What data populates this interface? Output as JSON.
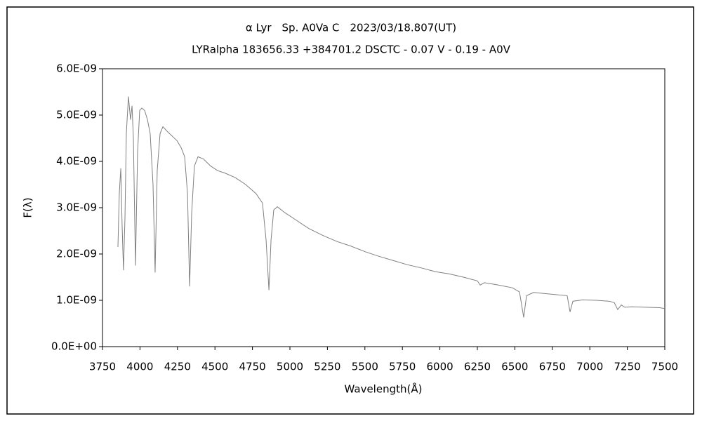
{
  "chart_data": {
    "type": "line",
    "title": "α Lyr　Sp. A0Va C　2023/03/18.807(UT)",
    "subtitle": "LYRalpha 183656.33 +384701.2 DSCTC - 0.07 V - 0.19 - A0V",
    "x_label": "Wavelength(Å)",
    "y_label": "F(λ)",
    "xlim": [
      3750,
      7500
    ],
    "xticks": [
      3750,
      4000,
      4250,
      4500,
      4750,
      5000,
      5250,
      5500,
      5750,
      6000,
      6250,
      6500,
      6750,
      7000,
      7250,
      7500
    ],
    "ylim": [
      0,
      6e-09
    ],
    "yticks": [
      {
        "value": 0,
        "label": "0.0E+00"
      },
      {
        "value": 1e-09,
        "label": "1.0E-09"
      },
      {
        "value": 2e-09,
        "label": "2.0E-09"
      },
      {
        "value": 3e-09,
        "label": "3.0E-09"
      },
      {
        "value": 4e-09,
        "label": "4.0E-09"
      },
      {
        "value": 5e-09,
        "label": "5.0E-09"
      },
      {
        "value": 6e-09,
        "label": "6.0E-09"
      }
    ],
    "grid": false,
    "color": "#808080",
    "x": [
      3853,
      3862,
      3872,
      3881,
      3890,
      3900,
      3909,
      3923,
      3937,
      3947,
      3956,
      3970,
      3984,
      3998,
      4012,
      4031,
      4050,
      4068,
      4087,
      4101,
      4115,
      4134,
      4153,
      4181,
      4213,
      4246,
      4274,
      4298,
      4317,
      4331,
      4345,
      4363,
      4387,
      4424,
      4471,
      4518,
      4565,
      4635,
      4705,
      4775,
      4817,
      4841,
      4860,
      4874,
      4892,
      4916,
      4963,
      5033,
      5126,
      5220,
      5314,
      5407,
      5501,
      5594,
      5688,
      5782,
      5876,
      5969,
      6063,
      6157,
      6250,
      6269,
      6297,
      6391,
      6484,
      6531,
      6559,
      6578,
      6625,
      6718,
      6849,
      6868,
      6887,
      6952,
      7046,
      7130,
      7163,
      7186,
      7210,
      7233,
      7280,
      7374,
      7467,
      7500
    ],
    "values": [
      2.15e-09,
      3.3e-09,
      3.85e-09,
      2.6e-09,
      1.65e-09,
      2.8e-09,
      4.6e-09,
      5.4e-09,
      4.9e-09,
      5.2e-09,
      4.5e-09,
      1.75e-09,
      4.2e-09,
      5.1e-09,
      5.15e-09,
      5.1e-09,
      4.9e-09,
      4.6e-09,
      3.5e-09,
      1.6e-09,
      3.8e-09,
      4.6e-09,
      4.75e-09,
      4.65e-09,
      4.55e-09,
      4.45e-09,
      4.3e-09,
      4.1e-09,
      3.3e-09,
      1.3e-09,
      2.9e-09,
      3.9e-09,
      4.1e-09,
      4.05e-09,
      3.9e-09,
      3.8e-09,
      3.75e-09,
      3.65e-09,
      3.5e-09,
      3.3e-09,
      3.1e-09,
      2.3e-09,
      1.22e-09,
      2.3e-09,
      2.95e-09,
      3.02e-09,
      2.9e-09,
      2.75e-09,
      2.55e-09,
      2.4e-09,
      2.27e-09,
      2.17e-09,
      2.05e-09,
      1.95e-09,
      1.86e-09,
      1.77e-09,
      1.7e-09,
      1.62e-09,
      1.57e-09,
      1.5e-09,
      1.42e-09,
      1.33e-09,
      1.38e-09,
      1.33e-09,
      1.27e-09,
      1.18e-09,
      6.3e-10,
      1.1e-09,
      1.17e-09,
      1.14e-09,
      1.1e-09,
      7.5e-10,
      9.8e-10,
      1.01e-09,
      1e-09,
      9.8e-10,
      9.5e-10,
      8e-10,
      9e-10,
      8.5e-10,
      8.6e-10,
      8.5e-10,
      8.4e-10,
      8.2e-10
    ]
  }
}
